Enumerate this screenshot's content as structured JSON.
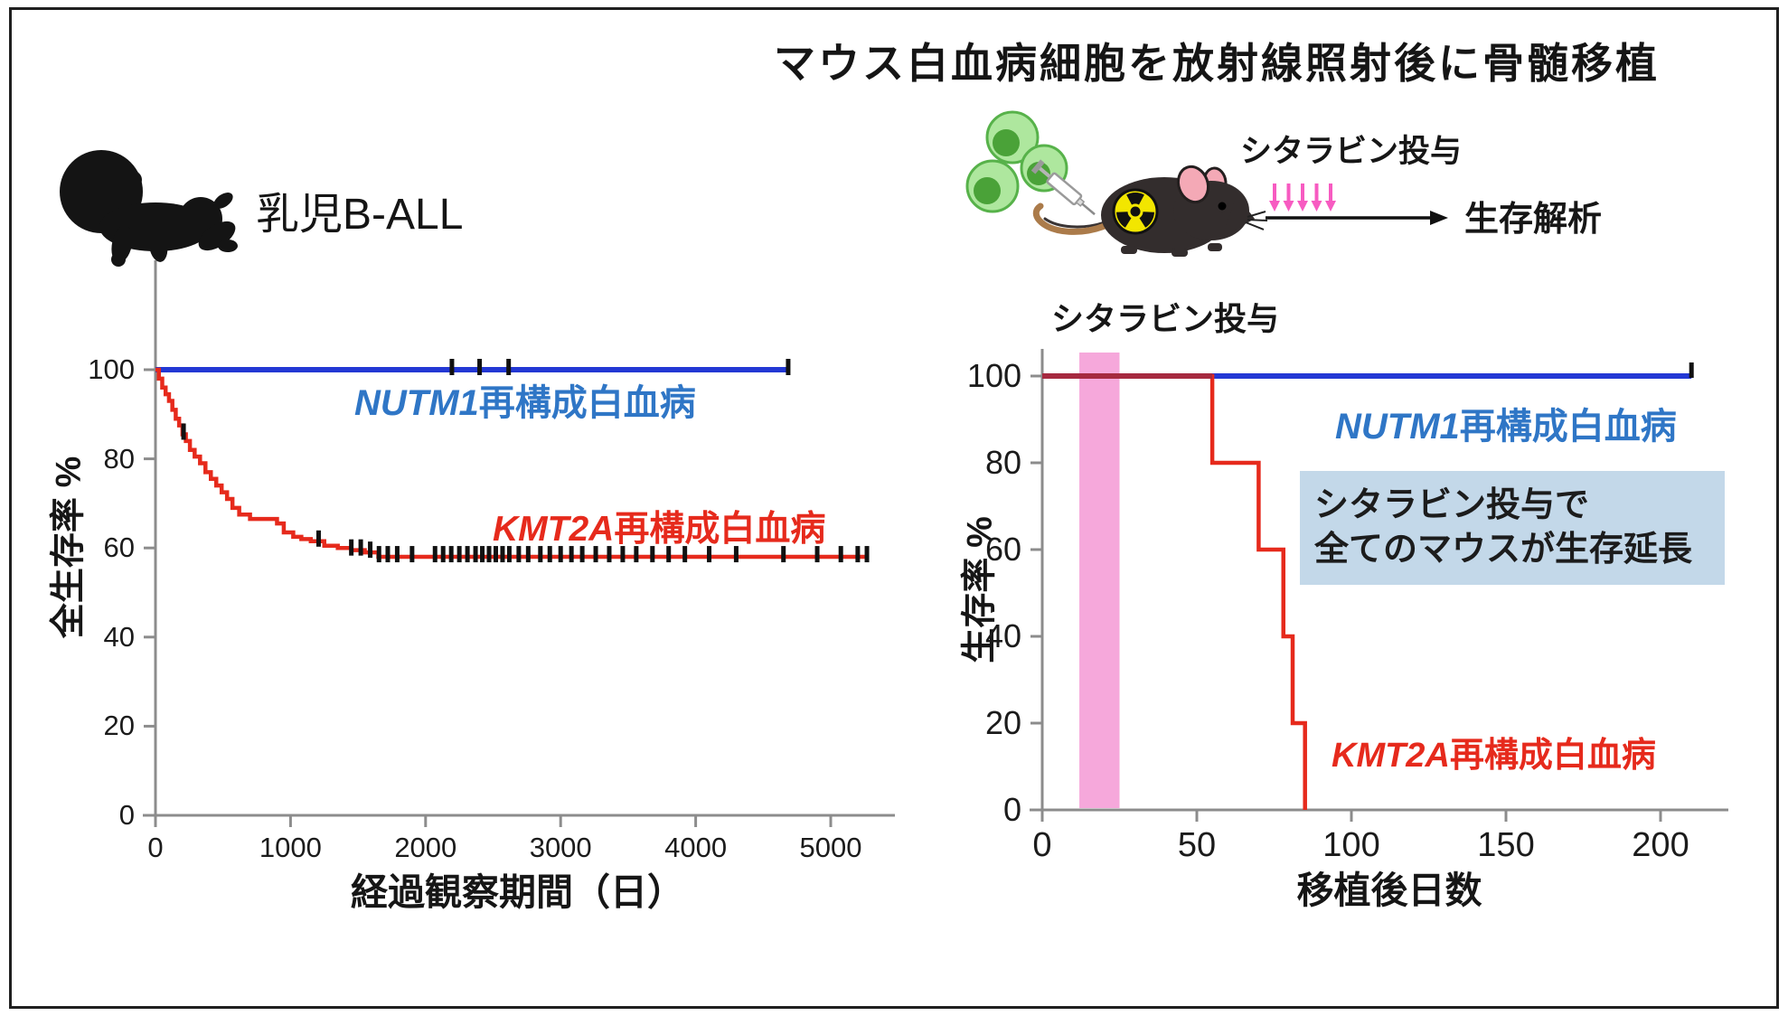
{
  "figure": {
    "header": {
      "label": "乳児B-ALL",
      "icon": "baby-silhouette-icon"
    },
    "diagram": {
      "title": "マウス白血病細胞を放射線照射後に骨髄移植",
      "cytarabine_label": "シタラビン投与",
      "survival_label": "生存解析",
      "icons": {
        "cells": "leukemia-cells-icon",
        "syringe": "syringe-icon",
        "mouse": "irradiated-mouse-icon",
        "dose_arrows": "cytarabine-dose-arrows-icon",
        "flow_arrow": "right-arrow-icon"
      }
    }
  },
  "colors": {
    "blue_line": "#2338d4",
    "blue_text": "#2f76c6",
    "red": "#e62a1c",
    "overlap_red": "#a62a40",
    "pink_band": "#f6a8db",
    "pink_arrow": "#f75bc1",
    "box_bg": "#c3d8e9",
    "axis": "#8c8c8c",
    "censor": "#111111",
    "text": "#1b1b1b"
  },
  "chart_data": [
    {
      "type": "line",
      "subtype": "kaplan-meier",
      "panel": "infant-b-all",
      "xlabel": "経過観察期間（日）",
      "ylabel": "全生存率 %",
      "x_ticks": [
        0,
        1000,
        2000,
        3000,
        4000,
        5000
      ],
      "y_ticks": [
        0,
        20,
        40,
        60,
        80,
        100
      ],
      "xlim": [
        0,
        5475
      ],
      "ylim": [
        0,
        100
      ],
      "grid": false,
      "legend_position": "inline",
      "series": [
        {
          "name_gene": "NUTM1",
          "name_rest": "再構成白血病",
          "color_key": "blue_line",
          "points": [
            [
              0,
              100
            ],
            [
              4690,
              100
            ]
          ],
          "censor_days": [
            2195,
            2400,
            2615,
            4685
          ]
        },
        {
          "name_gene": "KMT2A",
          "name_rest": "再構成白血病",
          "color_key": "red",
          "points": [
            [
              0,
              100
            ],
            [
              25,
              98
            ],
            [
              50,
              96
            ],
            [
              75,
              94.5
            ],
            [
              100,
              93
            ],
            [
              125,
              91
            ],
            [
              150,
              89
            ],
            [
              175,
              87.5
            ],
            [
              200,
              85.5
            ],
            [
              225,
              84
            ],
            [
              255,
              82
            ],
            [
              290,
              80.5
            ],
            [
              330,
              79
            ],
            [
              370,
              77
            ],
            [
              410,
              75.5
            ],
            [
              450,
              74
            ],
            [
              490,
              72.5
            ],
            [
              530,
              71
            ],
            [
              570,
              69
            ],
            [
              620,
              67.5
            ],
            [
              700,
              66.5
            ],
            [
              900,
              65.5
            ],
            [
              950,
              63.5
            ],
            [
              1020,
              62.5
            ],
            [
              1080,
              62
            ],
            [
              1150,
              61.5
            ],
            [
              1250,
              60.5
            ],
            [
              1350,
              60
            ],
            [
              1450,
              59.5
            ],
            [
              1550,
              59
            ],
            [
              1650,
              58
            ],
            [
              5275,
              58
            ]
          ],
          "censor_days": [
            208,
            1208,
            1450,
            1520,
            1590,
            1655,
            1720,
            1790,
            1900,
            2070,
            2130,
            2190,
            2250,
            2310,
            2370,
            2420,
            2470,
            2520,
            2570,
            2620,
            2690,
            2760,
            2850,
            2920,
            3000,
            3080,
            3160,
            3260,
            3360,
            3460,
            3560,
            3680,
            3800,
            3920,
            4100,
            4300,
            4650,
            4900,
            5075,
            5200,
            5268
          ]
        }
      ]
    },
    {
      "type": "line",
      "subtype": "kaplan-meier",
      "panel": "mouse-transplant",
      "xlabel": "移植後日数",
      "ylabel": "生存率 %",
      "x_ticks": [
        0,
        50,
        100,
        150,
        200
      ],
      "y_ticks": [
        0,
        20,
        40,
        60,
        80,
        100
      ],
      "xlim": [
        0,
        222
      ],
      "ylim": [
        0,
        100
      ],
      "grid": false,
      "band": {
        "label": "シタラビン投与",
        "x0": 12,
        "x1": 25,
        "color_key": "pink_band"
      },
      "series": [
        {
          "name_gene": "NUTM1",
          "name_rest": "再構成白血病",
          "color_key": "blue_line",
          "points": [
            [
              0,
              100
            ],
            [
              210,
              100
            ]
          ],
          "end_tick": true
        },
        {
          "name_gene": "KMT2A",
          "name_rest": "再構成白血病",
          "color_key": "red",
          "overlap_until": 55,
          "points": [
            [
              0,
              100
            ],
            [
              55,
              80
            ],
            [
              70,
              60
            ],
            [
              78,
              40
            ],
            [
              81,
              20
            ],
            [
              85,
              0
            ]
          ]
        }
      ],
      "annotation_box": {
        "line1": "シタラビン投与で",
        "line2": "全てのマウスが生存延長"
      }
    }
  ]
}
